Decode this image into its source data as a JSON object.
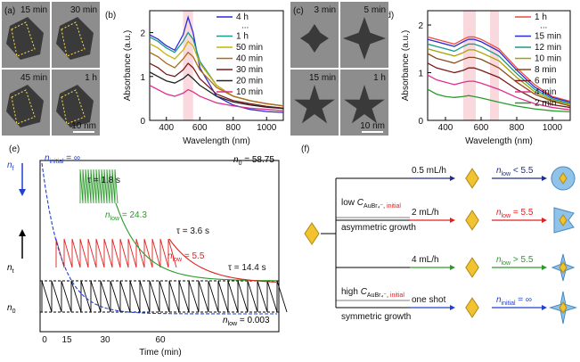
{
  "chart_data": [
    {
      "type": "line",
      "panel_label": "(b)",
      "xlabel": "Wavelength (nm)",
      "ylabel": "Absorbance (a.u.)",
      "x": [
        300,
        350,
        400,
        450,
        500,
        530,
        560,
        600,
        700,
        800,
        900,
        1000,
        1100
      ],
      "xlim": [
        300,
        1100
      ],
      "ylim": [
        0,
        2.5
      ],
      "xticks": [
        400,
        600,
        800,
        1000
      ],
      "yticks": [
        0,
        1,
        2
      ],
      "bands": [
        [
          500,
          560
        ]
      ],
      "legend_gap": "...",
      "series": [
        {
          "name": "4 h",
          "color": "#2b2bd6",
          "values": [
            1.95,
            1.85,
            1.7,
            1.6,
            1.95,
            2.35,
            2.0,
            1.2,
            0.55,
            0.35,
            0.25,
            0.2,
            0.18
          ]
        },
        {
          "name": "1 h",
          "color": "#1a9a8a",
          "values": [
            1.9,
            1.8,
            1.65,
            1.55,
            1.8,
            2.0,
            1.85,
            1.35,
            0.8,
            0.55,
            0.45,
            0.38,
            0.33
          ]
        },
        {
          "name": "50 min",
          "color": "#c8b400",
          "values": [
            1.75,
            1.65,
            1.5,
            1.4,
            1.6,
            1.8,
            1.7,
            1.3,
            0.8,
            0.55,
            0.45,
            0.38,
            0.33
          ]
        },
        {
          "name": "40 min",
          "color": "#b06a1a",
          "values": [
            1.55,
            1.45,
            1.3,
            1.2,
            1.4,
            1.55,
            1.45,
            1.15,
            0.75,
            0.55,
            0.45,
            0.38,
            0.33
          ]
        },
        {
          "name": "30 min",
          "color": "#7a1a1a",
          "values": [
            1.3,
            1.2,
            1.05,
            1.0,
            1.15,
            1.3,
            1.2,
            0.95,
            0.6,
            0.45,
            0.38,
            0.32,
            0.28
          ]
        },
        {
          "name": "20 min",
          "color": "#222222",
          "values": [
            1.1,
            1.0,
            0.9,
            0.85,
            0.95,
            1.05,
            0.95,
            0.8,
            0.55,
            0.42,
            0.35,
            0.3,
            0.27
          ]
        },
        {
          "name": "10 min",
          "color": "#e0308a",
          "values": [
            0.8,
            0.7,
            0.6,
            0.55,
            0.62,
            0.7,
            0.65,
            0.55,
            0.4,
            0.33,
            0.28,
            0.25,
            0.22
          ]
        }
      ]
    },
    {
      "type": "line",
      "panel_label": "(d)",
      "xlabel": "Wavelength (nm)",
      "ylabel": "Absorbance (a.u.)",
      "x": [
        300,
        350,
        400,
        450,
        500,
        530,
        560,
        600,
        700,
        800,
        900,
        1000,
        1100
      ],
      "xlim": [
        300,
        1100
      ],
      "ylim": [
        0,
        2.3
      ],
      "xticks": [
        400,
        600,
        800,
        1000
      ],
      "yticks": [
        0,
        1,
        2
      ],
      "bands": [
        [
          500,
          570
        ],
        [
          650,
          700
        ]
      ],
      "legend_gap": "...",
      "series": [
        {
          "name": "1 h",
          "color": "#f04a3a",
          "values": [
            1.75,
            1.7,
            1.65,
            1.6,
            1.7,
            1.75,
            1.75,
            1.7,
            1.5,
            1.1,
            0.75,
            0.5,
            0.4
          ]
        },
        {
          "name": "15 min",
          "color": "#2b2bd6",
          "values": [
            1.7,
            1.65,
            1.6,
            1.55,
            1.65,
            1.7,
            1.7,
            1.65,
            1.45,
            1.05,
            0.7,
            0.48,
            0.38
          ]
        },
        {
          "name": "12 min",
          "color": "#1a9a8a",
          "values": [
            1.6,
            1.55,
            1.5,
            1.45,
            1.55,
            1.6,
            1.6,
            1.55,
            1.35,
            0.98,
            0.65,
            0.45,
            0.35
          ]
        },
        {
          "name": "10 min",
          "color": "#a8a000",
          "values": [
            1.5,
            1.45,
            1.4,
            1.35,
            1.42,
            1.48,
            1.48,
            1.42,
            1.25,
            0.9,
            0.6,
            0.42,
            0.33
          ]
        },
        {
          "name": "8 min",
          "color": "#8a4a1a",
          "values": [
            1.4,
            1.3,
            1.25,
            1.2,
            1.28,
            1.32,
            1.32,
            1.28,
            1.1,
            0.8,
            0.55,
            0.4,
            0.3
          ]
        },
        {
          "name": "6 min",
          "color": "#7a1a1a",
          "values": [
            1.2,
            1.1,
            1.05,
            1.0,
            1.05,
            1.1,
            1.1,
            1.05,
            0.9,
            0.65,
            0.45,
            0.33,
            0.27
          ]
        },
        {
          "name": "4 min",
          "color": "#e0308a",
          "values": [
            0.95,
            0.85,
            0.8,
            0.75,
            0.8,
            0.82,
            0.82,
            0.78,
            0.65,
            0.48,
            0.35,
            0.27,
            0.22
          ]
        },
        {
          "name": "2 min",
          "color": "#2a9a2a",
          "values": [
            0.65,
            0.55,
            0.5,
            0.48,
            0.5,
            0.52,
            0.5,
            0.47,
            0.38,
            0.3,
            0.24,
            0.2,
            0.18
          ]
        }
      ]
    }
  ],
  "micrographs": [
    {
      "panel_label": "(a)",
      "frames": [
        "15 min",
        "30 min",
        "45 min",
        "1 h"
      ],
      "scale_bar": "10 nm"
    },
    {
      "panel_label": "(c)",
      "frames": [
        "3 min",
        "5 min",
        "15 min",
        "1 h"
      ],
      "scale_bar": "10 nm"
    }
  ],
  "kinetics": {
    "panel_label": "(e)",
    "xlabel": "Time (min)",
    "xtick_labels": [
      "0",
      "15",
      "30",
      "60"
    ],
    "nf": {
      "n": "n",
      "sub": "f"
    },
    "nt": {
      "n": "n",
      "sub": "t"
    },
    "n0": {
      "n": "n",
      "sub": "0"
    },
    "n_initial": {
      "n": "n",
      "sub": "initial",
      "rest": " = ∞"
    },
    "n0_value": {
      "n": "n",
      "sub": "0",
      "rest": " = 58.75"
    },
    "tau1": "τ = 1.8 s",
    "tau2": "τ = 3.6 s",
    "tau3": "τ = 14.4 s",
    "low1": {
      "n": "n",
      "sub": "low",
      "rest": " = 24.3"
    },
    "low2": {
      "n": "n",
      "sub": "low",
      "rest": " = 5.5"
    },
    "low3": {
      "n": "n",
      "sub": "low",
      "rest": " = 0.003"
    }
  },
  "scheme": {
    "panel_label": "(f)",
    "low": {
      "pre": "low ",
      "sym": "C",
      "sub": "AuBr₄⁻,",
      "sub2": " initial"
    },
    "high": {
      "pre": "high ",
      "sym": "C",
      "sub": "AuBr₄⁻,",
      "sub2": " initial"
    },
    "asym": "asymmetric growth",
    "sym": "symmetric growth",
    "rows": [
      {
        "rate": "0.5 mL/h",
        "n": "n",
        "sub": "low",
        "rest": " < 5.5",
        "color": "#1f2f8f"
      },
      {
        "rate": "2 mL/h",
        "n": "n",
        "sub": "low",
        "rest": " = 5.5",
        "color": "#e02020"
      },
      {
        "rate": "4 mL/h",
        "n": "n",
        "sub": "low",
        "rest": " > 5.5",
        "color": "#2a9a2a"
      },
      {
        "rate": "one shot",
        "n": "n",
        "sub": "initial",
        "rest": " = ∞",
        "color": "#2040d0"
      }
    ]
  }
}
